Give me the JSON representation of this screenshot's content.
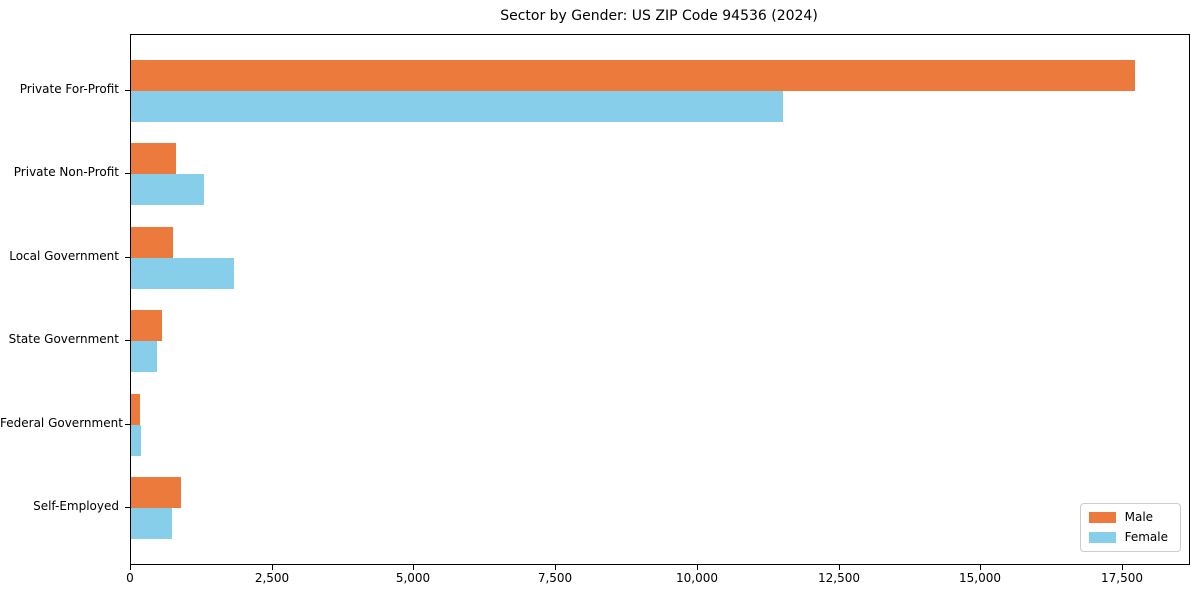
{
  "chart_data": {
    "type": "bar",
    "orientation": "horizontal",
    "title": "Sector by Gender: US ZIP Code 94536 (2024)",
    "xlabel": "",
    "ylabel": "",
    "categories": [
      "Private For-Profit",
      "Private Non-Profit",
      "Local Government",
      "State Government",
      "Federal Government",
      "Self-Employed"
    ],
    "series": [
      {
        "name": "Male",
        "color": "#EC7A3C",
        "values": [
          17700,
          800,
          740,
          540,
          150,
          880
        ]
      },
      {
        "name": "Female",
        "color": "#87CEEB",
        "values": [
          11500,
          1280,
          1810,
          450,
          185,
          720
        ]
      }
    ],
    "xlim": [
      0,
      18660
    ],
    "xticks": [
      0,
      2500,
      5000,
      7500,
      10000,
      12500,
      15000,
      17500
    ],
    "xtick_labels": [
      "0",
      "2,500",
      "5,000",
      "7,500",
      "10,000",
      "12,500",
      "15,000",
      "17,500"
    ],
    "grid": false,
    "legend_position": "lower right",
    "background": "#ffffff",
    "spine_color": "#000000"
  }
}
